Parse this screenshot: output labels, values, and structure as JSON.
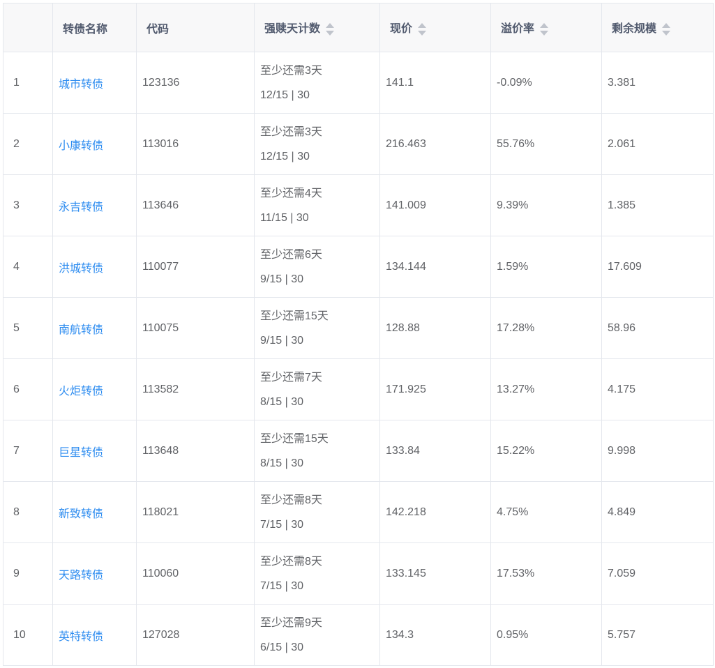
{
  "headers": [
    "",
    "转债名称",
    "代码",
    "强赎天计数",
    "现价",
    "溢价率",
    "剩余规模"
  ],
  "sortable": [
    false,
    false,
    false,
    true,
    true,
    true,
    true
  ],
  "rows": [
    {
      "idx": "1",
      "name": "城市转债",
      "code": "123136",
      "days": "至少还需3天",
      "count": "12/15 | 30",
      "price": "141.1",
      "premium": "-0.09%",
      "remain": "3.381"
    },
    {
      "idx": "2",
      "name": "小康转债",
      "code": "113016",
      "days": "至少还需3天",
      "count": "12/15 | 30",
      "price": "216.463",
      "premium": "55.76%",
      "remain": "2.061"
    },
    {
      "idx": "3",
      "name": "永吉转债",
      "code": "113646",
      "days": "至少还需4天",
      "count": "11/15 | 30",
      "price": "141.009",
      "premium": "9.39%",
      "remain": "1.385"
    },
    {
      "idx": "4",
      "name": "洪城转债",
      "code": "110077",
      "days": "至少还需6天",
      "count": "9/15 | 30",
      "price": "134.144",
      "premium": "1.59%",
      "remain": "17.609"
    },
    {
      "idx": "5",
      "name": "南航转债",
      "code": "110075",
      "days": "至少还需15天",
      "count": "9/15 | 30",
      "price": "128.88",
      "premium": "17.28%",
      "remain": "58.96"
    },
    {
      "idx": "6",
      "name": "火炬转债",
      "code": "113582",
      "days": "至少还需7天",
      "count": "8/15 | 30",
      "price": "171.925",
      "premium": "13.27%",
      "remain": "4.175"
    },
    {
      "idx": "7",
      "name": "巨星转债",
      "code": "113648",
      "days": "至少还需15天",
      "count": "8/15 | 30",
      "price": "133.84",
      "premium": "15.22%",
      "remain": "9.998"
    },
    {
      "idx": "8",
      "name": "新致转债",
      "code": "118021",
      "days": "至少还需8天",
      "count": "7/15 | 30",
      "price": "142.218",
      "premium": "4.75%",
      "remain": "4.849"
    },
    {
      "idx": "9",
      "name": "天路转债",
      "code": "110060",
      "days": "至少还需8天",
      "count": "7/15 | 30",
      "price": "133.145",
      "premium": "17.53%",
      "remain": "7.059"
    },
    {
      "idx": "10",
      "name": "英特转债",
      "code": "127028",
      "days": "至少还需9天",
      "count": "6/15 | 30",
      "price": "134.3",
      "premium": "0.95%",
      "remain": "5.757"
    }
  ]
}
